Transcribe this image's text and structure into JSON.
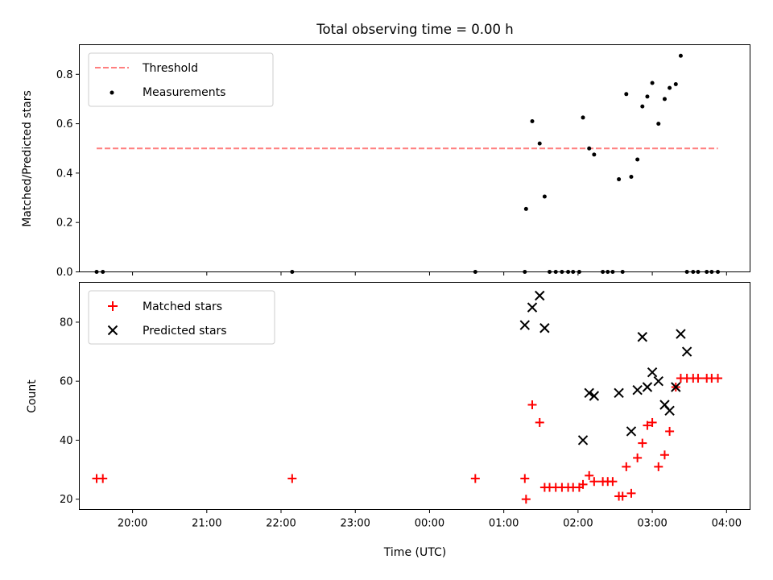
{
  "title": "Total observing time = 0.00 h",
  "chart_data": [
    {
      "type": "scatter",
      "ylabel": "Matched/Predicted stars",
      "xlim": [
        "19:17",
        "04:19"
      ],
      "ylim": [
        0,
        0.92
      ],
      "yticks": [
        0.0,
        0.2,
        0.4,
        0.6,
        0.8
      ],
      "ytick_labels": [
        "0.0",
        "0.2",
        "0.4",
        "0.6",
        "0.8"
      ],
      "legend_position": "top-left",
      "series": [
        {
          "name": "Threshold",
          "type": "line",
          "style": "dashed",
          "color": "#ff7f7f",
          "x": [
            "19:31",
            "03:53"
          ],
          "y": [
            0.5,
            0.5
          ]
        },
        {
          "name": "Measurements",
          "type": "scatter",
          "color": "#000000",
          "marker": "dot",
          "x": [
            "19:31",
            "19:36",
            "22:09",
            "00:37",
            "01:17",
            "01:18",
            "01:23",
            "01:29",
            "01:33",
            "01:37",
            "01:42",
            "01:47",
            "01:52",
            "01:56",
            "02:01",
            "02:04",
            "02:09",
            "02:13",
            "02:20",
            "02:24",
            "02:28",
            "02:33",
            "02:36",
            "02:39",
            "02:43",
            "02:48",
            "02:52",
            "02:56",
            "03:00",
            "03:05",
            "03:10",
            "03:14",
            "03:19",
            "03:23",
            "03:28",
            "03:33",
            "03:37",
            "03:44",
            "03:48",
            "03:53"
          ],
          "y": [
            0.0,
            0.0,
            0.0,
            0.0,
            0.0,
            0.255,
            0.61,
            0.52,
            0.305,
            0.0,
            0.0,
            0.0,
            0.0,
            0.0,
            0.0,
            0.625,
            0.5,
            0.475,
            0.0,
            0.0,
            0.0,
            0.375,
            0.0,
            0.72,
            0.385,
            0.455,
            0.67,
            0.71,
            0.765,
            0.6,
            0.7,
            0.745,
            0.76,
            0.875,
            0.0,
            0.0,
            0.0,
            0.0,
            0.0,
            0.0
          ]
        }
      ]
    },
    {
      "type": "scatter",
      "xlabel": "Time (UTC)",
      "ylabel": "Count",
      "xlim": [
        "19:17",
        "04:19"
      ],
      "ylim": [
        16.5,
        93.5
      ],
      "yticks": [
        20,
        40,
        60,
        80
      ],
      "ytick_labels": [
        "20",
        "40",
        "60",
        "80"
      ],
      "xticks": [
        "20:00",
        "21:00",
        "22:00",
        "23:00",
        "00:00",
        "01:00",
        "02:00",
        "03:00",
        "04:00"
      ],
      "legend_position": "top-left",
      "series": [
        {
          "name": "Matched stars",
          "marker": "plus",
          "color": "#ff0000",
          "x": [
            "19:31",
            "19:36",
            "22:09",
            "00:37",
            "01:17",
            "01:18",
            "01:23",
            "01:29",
            "01:33",
            "01:37",
            "01:42",
            "01:47",
            "01:52",
            "01:56",
            "02:01",
            "02:04",
            "02:09",
            "02:13",
            "02:20",
            "02:24",
            "02:28",
            "02:33",
            "02:36",
            "02:39",
            "02:43",
            "02:48",
            "02:52",
            "02:56",
            "03:00",
            "03:05",
            "03:10",
            "03:14",
            "03:19",
            "03:23",
            "03:28",
            "03:33",
            "03:37",
            "03:44",
            "03:48",
            "03:53"
          ],
          "y": [
            27,
            27,
            27,
            27,
            27,
            20,
            52,
            46,
            24,
            24,
            24,
            24,
            24,
            24,
            24,
            25,
            28,
            26,
            26,
            26,
            26,
            21,
            21,
            31,
            22,
            34,
            39,
            45,
            46,
            31,
            35,
            43,
            58,
            61,
            61,
            61,
            61,
            61,
            61,
            61
          ]
        },
        {
          "name": "Predicted stars",
          "marker": "x",
          "color": "#000000",
          "x": [
            "01:17",
            "01:23",
            "01:29",
            "01:33",
            "02:04",
            "02:09",
            "02:13",
            "02:33",
            "02:43",
            "02:48",
            "02:52",
            "02:56",
            "03:00",
            "03:05",
            "03:10",
            "03:14",
            "03:19",
            "03:23"
          ],
          "y": [
            79,
            85,
            89,
            78,
            40,
            56,
            55,
            56,
            43,
            57,
            75,
            58,
            63,
            60,
            52,
            50,
            58,
            76
          ]
        },
        {
          "name": "",
          "marker": "x",
          "color": "#000000",
          "x": [
            "03:28"
          ],
          "y": [
            70
          ]
        }
      ]
    }
  ]
}
